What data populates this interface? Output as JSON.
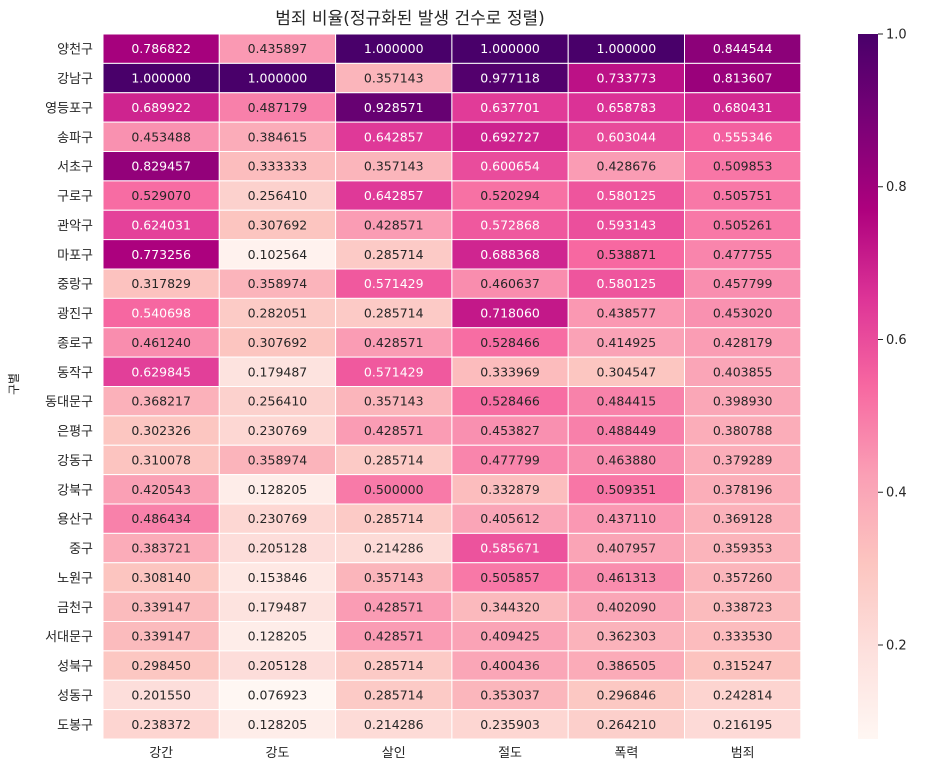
{
  "chart_data": {
    "type": "heatmap",
    "title": "범죄 비율(정규화된 발생 건수로 정렬)",
    "ylabel": "구별",
    "xlabel": "",
    "columns": [
      "강간",
      "강도",
      "살인",
      "절도",
      "폭력",
      "범죄"
    ],
    "rows": [
      "양천구",
      "강남구",
      "영등포구",
      "송파구",
      "서초구",
      "구로구",
      "관악구",
      "마포구",
      "중랑구",
      "광진구",
      "종로구",
      "동작구",
      "동대문구",
      "은평구",
      "강동구",
      "강북구",
      "용산구",
      "중구",
      "노원구",
      "금천구",
      "서대문구",
      "성북구",
      "성동구",
      "도봉구"
    ],
    "values": [
      [
        0.786822,
        0.435897,
        1.0,
        1.0,
        1.0,
        0.844544
      ],
      [
        1.0,
        1.0,
        0.357143,
        0.977118,
        0.733773,
        0.813607
      ],
      [
        0.689922,
        0.487179,
        0.928571,
        0.637701,
        0.658783,
        0.680431
      ],
      [
        0.453488,
        0.384615,
        0.642857,
        0.692727,
        0.603044,
        0.555346
      ],
      [
        0.829457,
        0.333333,
        0.357143,
        0.600654,
        0.428676,
        0.509853
      ],
      [
        0.52907,
        0.25641,
        0.642857,
        0.520294,
        0.580125,
        0.505751
      ],
      [
        0.624031,
        0.307692,
        0.428571,
        0.572868,
        0.593143,
        0.505261
      ],
      [
        0.773256,
        0.102564,
        0.285714,
        0.688368,
        0.538871,
        0.477755
      ],
      [
        0.317829,
        0.358974,
        0.571429,
        0.460637,
        0.580125,
        0.457799
      ],
      [
        0.540698,
        0.282051,
        0.285714,
        0.71806,
        0.438577,
        0.45302
      ],
      [
        0.46124,
        0.307692,
        0.428571,
        0.528466,
        0.414925,
        0.428179
      ],
      [
        0.629845,
        0.179487,
        0.571429,
        0.333969,
        0.304547,
        0.403855
      ],
      [
        0.368217,
        0.25641,
        0.357143,
        0.528466,
        0.484415,
        0.39893
      ],
      [
        0.302326,
        0.230769,
        0.428571,
        0.453827,
        0.488449,
        0.380788
      ],
      [
        0.310078,
        0.358974,
        0.285714,
        0.477799,
        0.46388,
        0.379289
      ],
      [
        0.420543,
        0.128205,
        0.5,
        0.332879,
        0.509351,
        0.378196
      ],
      [
        0.486434,
        0.230769,
        0.285714,
        0.405612,
        0.43711,
        0.369128
      ],
      [
        0.383721,
        0.205128,
        0.214286,
        0.585671,
        0.407957,
        0.359353
      ],
      [
        0.30814,
        0.153846,
        0.357143,
        0.505857,
        0.461313,
        0.35726
      ],
      [
        0.339147,
        0.179487,
        0.428571,
        0.34432,
        0.40209,
        0.338723
      ],
      [
        0.339147,
        0.128205,
        0.428571,
        0.409425,
        0.362303,
        0.33353
      ],
      [
        0.29845,
        0.205128,
        0.285714,
        0.400436,
        0.386505,
        0.315247
      ],
      [
        0.20155,
        0.076923,
        0.285714,
        0.353037,
        0.296846,
        0.242814
      ],
      [
        0.238372,
        0.128205,
        0.214286,
        0.235903,
        0.26421,
        0.216195
      ]
    ],
    "colorbar": {
      "range": [
        0.076923,
        1.0
      ],
      "ticks": [
        1.0,
        0.8,
        0.6,
        0.4,
        0.2
      ],
      "tick_labels": [
        "1.0",
        "0.8",
        "0.6",
        "0.4",
        "0.2"
      ]
    },
    "colormap": "RdPu",
    "colormap_stops": [
      "#fff7f3",
      "#fde0dd",
      "#fcc5c0",
      "#fa9fb5",
      "#f768a1",
      "#dd3497",
      "#ae017e",
      "#7a0177",
      "#49006a"
    ],
    "annotation_light_color": "#ffffff",
    "annotation_dark_color": "#262626",
    "gridline_color": "#ffffff"
  }
}
